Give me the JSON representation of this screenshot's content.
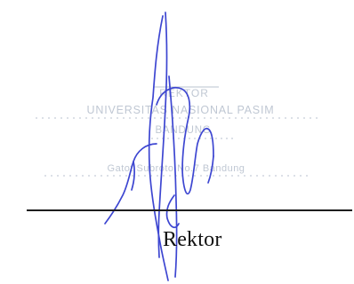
{
  "stamp": {
    "lines": [
      "REKTOR",
      "UNIVERSITAS NASIONAL PASIM",
      "BANDUNG",
      "Gatot Subroto No.7 Bandung"
    ],
    "ink_color": "#aeb8c7"
  },
  "signature": {
    "ink_color": "#3d46d1"
  },
  "role_label": "Rektor"
}
